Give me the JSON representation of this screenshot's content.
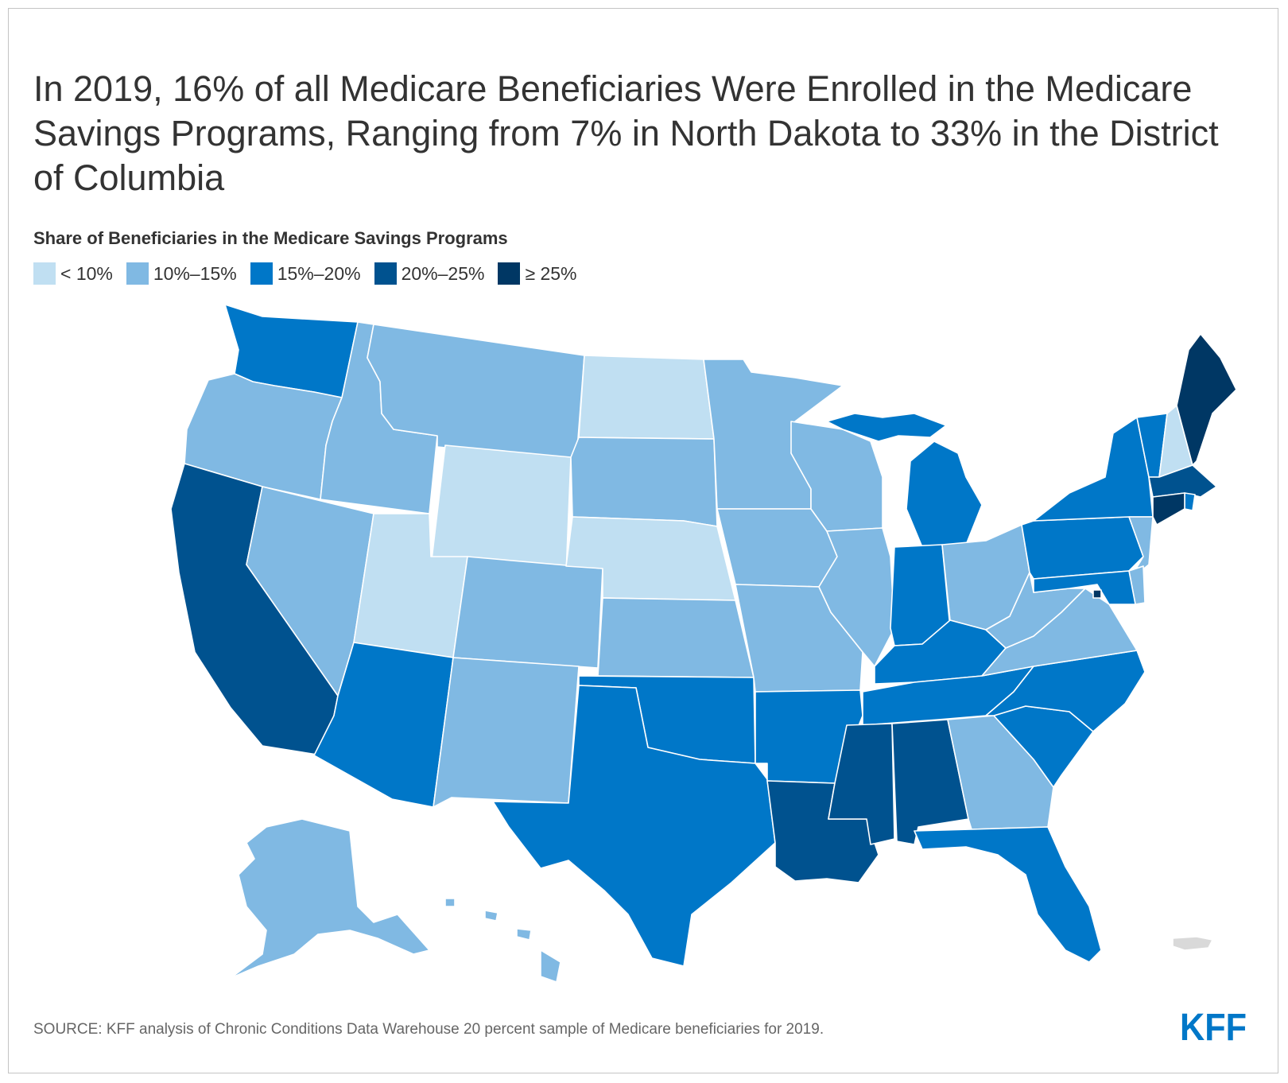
{
  "title": "In 2019, 16% of all Medicare Beneficiaries Were Enrolled in the Medicare Savings Programs, Ranging from 7% in North Dakota to 33% in the District of Columbia",
  "subtitle": "Share of Beneficiaries in the Medicare Savings Programs",
  "legend": [
    {
      "label": "< 10%",
      "color": "#c0dff2"
    },
    {
      "label": "10%–15%",
      "color": "#80b9e3"
    },
    {
      "label": "15%–20%",
      "color": "#0077c8"
    },
    {
      "label": "20%–25%",
      "color": "#00528f"
    },
    {
      "label": "≥ 25%",
      "color": "#003764"
    }
  ],
  "map_data": {
    "type": "choropleth",
    "region": "United States",
    "bins": [
      "< 10%",
      "10%–15%",
      "15%–20%",
      "20%–25%",
      "≥ 25%"
    ],
    "states": {
      "WA": "15%–20%",
      "OR": "10%–15%",
      "CA": "20%–25%",
      "NV": "10%–15%",
      "ID": "10%–15%",
      "MT": "10%–15%",
      "WY": "< 10%",
      "UT": "< 10%",
      "AZ": "15%–20%",
      "CO": "10%–15%",
      "NM": "10%–15%",
      "ND": "< 10%",
      "SD": "10%–15%",
      "NE": "< 10%",
      "KS": "10%–15%",
      "OK": "15%–20%",
      "TX": "15%–20%",
      "MN": "10%–15%",
      "IA": "10%–15%",
      "MO": "10%–15%",
      "AR": "15%–20%",
      "LA": "20%–25%",
      "WI": "10%–15%",
      "IL": "10%–15%",
      "MI": "15%–20%",
      "IN": "15%–20%",
      "OH": "10%–15%",
      "KY": "15%–20%",
      "TN": "15%–20%",
      "MS": "20%–25%",
      "AL": "20%–25%",
      "GA": "10%–15%",
      "FL": "15%–20%",
      "SC": "15%–20%",
      "NC": "15%–20%",
      "VA": "10%–15%",
      "WV": "10%–15%",
      "PA": "15%–20%",
      "NY": "15%–20%",
      "VT": "15%–20%",
      "NH": "< 10%",
      "ME": "≥ 25%",
      "MA": "20%–25%",
      "RI": "15%–20%",
      "CT": "≥ 25%",
      "NJ": "10%–15%",
      "DE": "10%–15%",
      "MD": "15%–20%",
      "DC": "≥ 25%",
      "AK": "10%–15%",
      "HI": "10%–15%",
      "PR": "no data"
    }
  },
  "source": "SOURCE: KFF analysis of Chronic Conditions Data Warehouse 20 percent sample of Medicare beneficiaries for 2019.",
  "logo": "KFF"
}
